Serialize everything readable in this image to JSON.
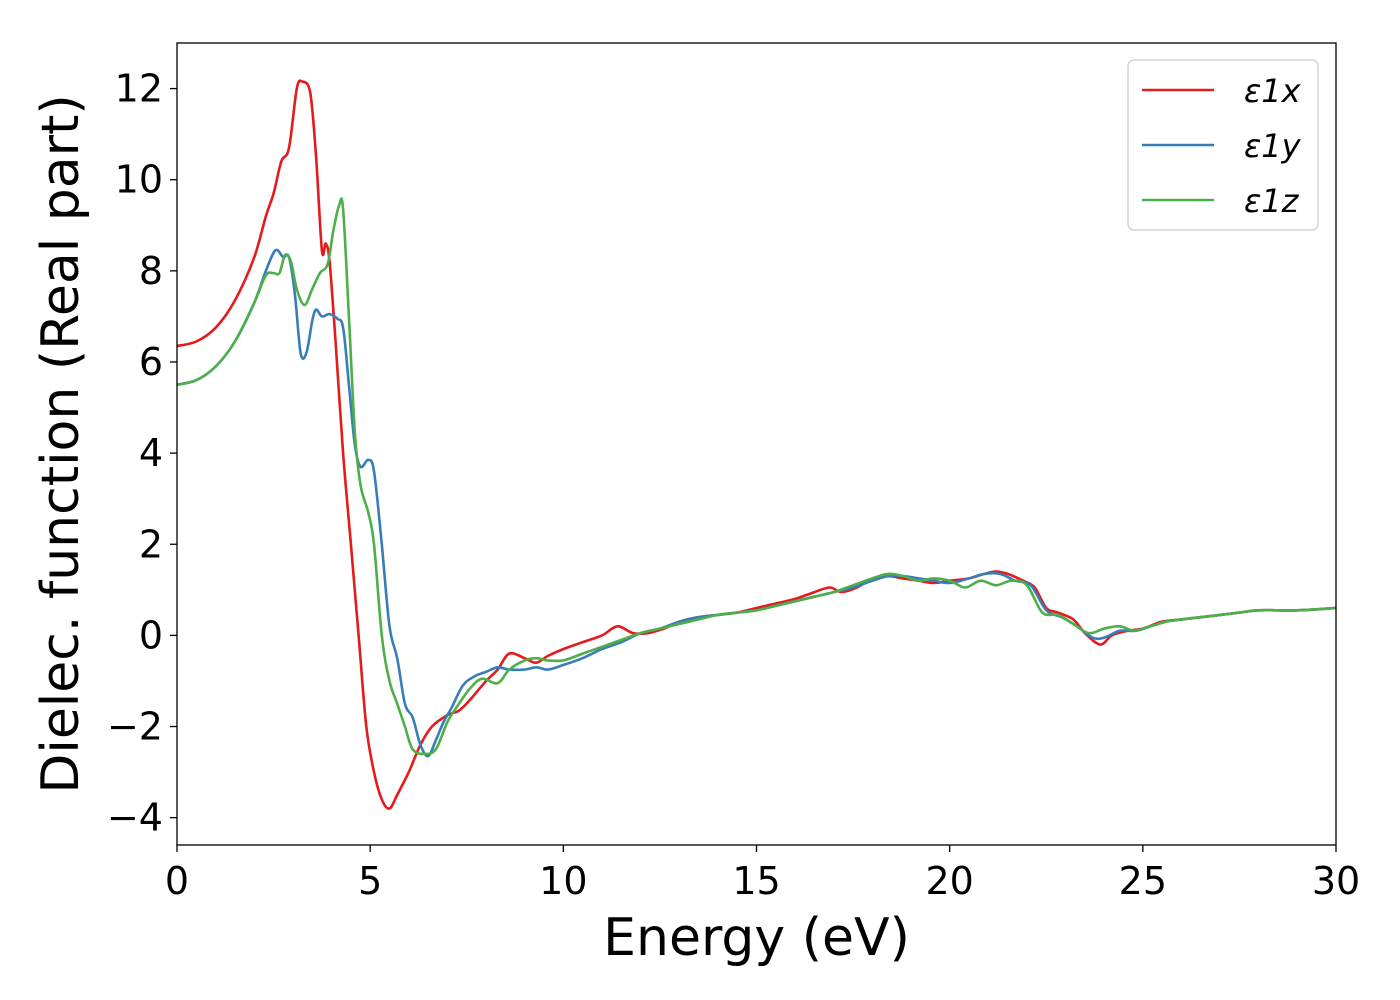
{
  "chart_data": {
    "type": "line",
    "xlabel": "Energy (eV)",
    "ylabel": "Dielec. function (Real part)",
    "xlim": [
      0,
      30
    ],
    "ylim": [
      -4.6,
      13.0
    ],
    "xticks": [
      0,
      5,
      10,
      15,
      20,
      25,
      30
    ],
    "xtick_labels": [
      "0",
      "5",
      "10",
      "15",
      "20",
      "25",
      "30"
    ],
    "yticks": [
      -4,
      -2,
      0,
      2,
      4,
      6,
      8,
      10,
      12
    ],
    "ytick_labels": [
      "−4",
      "−2",
      "0",
      "2",
      "4",
      "6",
      "8",
      "10",
      "12"
    ],
    "grid": false,
    "legend_position": "top-right",
    "series": [
      {
        "name": "ε1x",
        "color": "#e41a1c",
        "points": [
          [
            0,
            6.35
          ],
          [
            0.5,
            6.45
          ],
          [
            1.0,
            6.75
          ],
          [
            1.5,
            7.35
          ],
          [
            2.0,
            8.3
          ],
          [
            2.3,
            9.2
          ],
          [
            2.5,
            9.7
          ],
          [
            2.7,
            10.4
          ],
          [
            2.9,
            10.7
          ],
          [
            3.1,
            12.0
          ],
          [
            3.25,
            12.15
          ],
          [
            3.45,
            11.9
          ],
          [
            3.6,
            10.5
          ],
          [
            3.75,
            8.45
          ],
          [
            3.85,
            8.6
          ],
          [
            3.95,
            8.2
          ],
          [
            4.1,
            6.5
          ],
          [
            4.3,
            4.0
          ],
          [
            4.5,
            2.0
          ],
          [
            4.7,
            0.0
          ],
          [
            4.9,
            -2.0
          ],
          [
            5.1,
            -3.0
          ],
          [
            5.3,
            -3.6
          ],
          [
            5.5,
            -3.8
          ],
          [
            5.7,
            -3.5
          ],
          [
            6.0,
            -3.0
          ],
          [
            6.3,
            -2.4
          ],
          [
            6.6,
            -2.0
          ],
          [
            7.0,
            -1.75
          ],
          [
            7.3,
            -1.65
          ],
          [
            7.6,
            -1.4
          ],
          [
            8.0,
            -1.0
          ],
          [
            8.3,
            -0.75
          ],
          [
            8.6,
            -0.4
          ],
          [
            9.0,
            -0.5
          ],
          [
            9.3,
            -0.6
          ],
          [
            9.6,
            -0.45
          ],
          [
            10.0,
            -0.3
          ],
          [
            10.5,
            -0.15
          ],
          [
            11.0,
            0.0
          ],
          [
            11.4,
            0.2
          ],
          [
            11.8,
            0.05
          ],
          [
            12.2,
            0.05
          ],
          [
            12.6,
            0.15
          ],
          [
            13.0,
            0.3
          ],
          [
            13.5,
            0.4
          ],
          [
            14.0,
            0.45
          ],
          [
            14.5,
            0.5
          ],
          [
            15.0,
            0.6
          ],
          [
            15.5,
            0.7
          ],
          [
            16.0,
            0.8
          ],
          [
            16.5,
            0.95
          ],
          [
            16.9,
            1.05
          ],
          [
            17.2,
            0.95
          ],
          [
            17.6,
            1.05
          ],
          [
            18.0,
            1.25
          ],
          [
            18.4,
            1.3
          ],
          [
            18.8,
            1.25
          ],
          [
            19.2,
            1.2
          ],
          [
            19.6,
            1.15
          ],
          [
            20.0,
            1.2
          ],
          [
            20.5,
            1.25
          ],
          [
            20.9,
            1.35
          ],
          [
            21.2,
            1.4
          ],
          [
            21.5,
            1.35
          ],
          [
            21.9,
            1.2
          ],
          [
            22.2,
            1.05
          ],
          [
            22.5,
            0.6
          ],
          [
            22.8,
            0.5
          ],
          [
            23.2,
            0.35
          ],
          [
            23.5,
            0.05
          ],
          [
            23.9,
            -0.2
          ],
          [
            24.2,
            0.0
          ],
          [
            24.6,
            0.1
          ],
          [
            25.0,
            0.15
          ],
          [
            25.5,
            0.3
          ],
          [
            26.0,
            0.35
          ],
          [
            26.5,
            0.4
          ],
          [
            27.0,
            0.45
          ],
          [
            27.5,
            0.5
          ],
          [
            28.0,
            0.55
          ],
          [
            29.0,
            0.55
          ],
          [
            30.0,
            0.6
          ]
        ]
      },
      {
        "name": "ε1y",
        "color": "#377eb8",
        "points": [
          [
            0,
            5.5
          ],
          [
            0.5,
            5.6
          ],
          [
            1.0,
            5.9
          ],
          [
            1.5,
            6.45
          ],
          [
            2.0,
            7.3
          ],
          [
            2.3,
            8.0
          ],
          [
            2.55,
            8.45
          ],
          [
            2.75,
            8.3
          ],
          [
            2.9,
            8.3
          ],
          [
            3.05,
            7.5
          ],
          [
            3.2,
            6.2
          ],
          [
            3.35,
            6.2
          ],
          [
            3.5,
            6.9
          ],
          [
            3.6,
            7.15
          ],
          [
            3.75,
            7.0
          ],
          [
            3.95,
            7.05
          ],
          [
            4.15,
            6.95
          ],
          [
            4.3,
            6.75
          ],
          [
            4.45,
            5.5
          ],
          [
            4.6,
            4.2
          ],
          [
            4.75,
            3.7
          ],
          [
            4.95,
            3.85
          ],
          [
            5.1,
            3.6
          ],
          [
            5.3,
            2.0
          ],
          [
            5.5,
            0.2
          ],
          [
            5.7,
            -0.5
          ],
          [
            5.9,
            -1.5
          ],
          [
            6.1,
            -1.8
          ],
          [
            6.3,
            -2.4
          ],
          [
            6.5,
            -2.65
          ],
          [
            6.7,
            -2.3
          ],
          [
            6.9,
            -1.9
          ],
          [
            7.1,
            -1.6
          ],
          [
            7.4,
            -1.1
          ],
          [
            7.7,
            -0.9
          ],
          [
            8.0,
            -0.8
          ],
          [
            8.3,
            -0.7
          ],
          [
            8.6,
            -0.75
          ],
          [
            9.0,
            -0.75
          ],
          [
            9.3,
            -0.7
          ],
          [
            9.6,
            -0.75
          ],
          [
            10.0,
            -0.65
          ],
          [
            10.5,
            -0.5
          ],
          [
            11.0,
            -0.3
          ],
          [
            11.5,
            -0.15
          ],
          [
            12.0,
            0.05
          ],
          [
            12.5,
            0.15
          ],
          [
            13.0,
            0.3
          ],
          [
            13.5,
            0.4
          ],
          [
            14.0,
            0.45
          ],
          [
            14.5,
            0.5
          ],
          [
            15.0,
            0.55
          ],
          [
            15.5,
            0.65
          ],
          [
            16.0,
            0.75
          ],
          [
            16.5,
            0.85
          ],
          [
            17.0,
            0.95
          ],
          [
            17.5,
            1.05
          ],
          [
            18.0,
            1.2
          ],
          [
            18.4,
            1.3
          ],
          [
            18.8,
            1.3
          ],
          [
            19.2,
            1.25
          ],
          [
            19.6,
            1.2
          ],
          [
            20.0,
            1.15
          ],
          [
            20.5,
            1.25
          ],
          [
            20.9,
            1.35
          ],
          [
            21.3,
            1.35
          ],
          [
            21.7,
            1.2
          ],
          [
            22.1,
            1.1
          ],
          [
            22.5,
            0.55
          ],
          [
            22.9,
            0.4
          ],
          [
            23.3,
            0.2
          ],
          [
            23.7,
            -0.05
          ],
          [
            24.0,
            -0.05
          ],
          [
            24.4,
            0.1
          ],
          [
            24.8,
            0.1
          ],
          [
            25.2,
            0.2
          ],
          [
            25.6,
            0.3
          ],
          [
            26.0,
            0.35
          ],
          [
            26.5,
            0.4
          ],
          [
            27.0,
            0.45
          ],
          [
            27.5,
            0.5
          ],
          [
            28.0,
            0.55
          ],
          [
            29.0,
            0.55
          ],
          [
            30.0,
            0.6
          ]
        ]
      },
      {
        "name": "ε1z",
        "color": "#4daf4a",
        "points": [
          [
            0,
            5.5
          ],
          [
            0.5,
            5.6
          ],
          [
            1.0,
            5.9
          ],
          [
            1.5,
            6.45
          ],
          [
            2.0,
            7.3
          ],
          [
            2.3,
            7.9
          ],
          [
            2.5,
            7.95
          ],
          [
            2.65,
            7.95
          ],
          [
            2.8,
            8.35
          ],
          [
            2.95,
            8.2
          ],
          [
            3.1,
            7.6
          ],
          [
            3.3,
            7.25
          ],
          [
            3.5,
            7.6
          ],
          [
            3.7,
            7.95
          ],
          [
            3.9,
            8.15
          ],
          [
            4.05,
            8.9
          ],
          [
            4.2,
            9.45
          ],
          [
            4.3,
            9.35
          ],
          [
            4.45,
            7.0
          ],
          [
            4.6,
            4.5
          ],
          [
            4.75,
            3.3
          ],
          [
            4.95,
            2.7
          ],
          [
            5.1,
            2.0
          ],
          [
            5.3,
            0.0
          ],
          [
            5.5,
            -1.0
          ],
          [
            5.7,
            -1.5
          ],
          [
            5.9,
            -2.0
          ],
          [
            6.1,
            -2.5
          ],
          [
            6.4,
            -2.6
          ],
          [
            6.7,
            -2.5
          ],
          [
            7.0,
            -1.9
          ],
          [
            7.3,
            -1.5
          ],
          [
            7.6,
            -1.15
          ],
          [
            7.9,
            -0.95
          ],
          [
            8.3,
            -1.05
          ],
          [
            8.6,
            -0.75
          ],
          [
            9.0,
            -0.55
          ],
          [
            9.3,
            -0.5
          ],
          [
            9.6,
            -0.55
          ],
          [
            10.0,
            -0.55
          ],
          [
            10.5,
            -0.4
          ],
          [
            11.0,
            -0.25
          ],
          [
            11.5,
            -0.1
          ],
          [
            12.0,
            0.05
          ],
          [
            12.5,
            0.15
          ],
          [
            13.0,
            0.25
          ],
          [
            13.5,
            0.35
          ],
          [
            14.0,
            0.45
          ],
          [
            14.5,
            0.5
          ],
          [
            15.0,
            0.55
          ],
          [
            15.5,
            0.65
          ],
          [
            16.0,
            0.75
          ],
          [
            16.5,
            0.85
          ],
          [
            17.0,
            0.95
          ],
          [
            17.5,
            1.1
          ],
          [
            18.0,
            1.25
          ],
          [
            18.4,
            1.35
          ],
          [
            18.8,
            1.3
          ],
          [
            19.2,
            1.2
          ],
          [
            19.6,
            1.25
          ],
          [
            20.0,
            1.2
          ],
          [
            20.4,
            1.05
          ],
          [
            20.8,
            1.2
          ],
          [
            21.2,
            1.1
          ],
          [
            21.6,
            1.2
          ],
          [
            22.0,
            1.1
          ],
          [
            22.4,
            0.5
          ],
          [
            22.8,
            0.45
          ],
          [
            23.2,
            0.25
          ],
          [
            23.6,
            0.05
          ],
          [
            24.0,
            0.15
          ],
          [
            24.4,
            0.2
          ],
          [
            24.8,
            0.1
          ],
          [
            25.2,
            0.2
          ],
          [
            25.6,
            0.3
          ],
          [
            26.0,
            0.35
          ],
          [
            26.5,
            0.4
          ],
          [
            27.0,
            0.45
          ],
          [
            27.5,
            0.5
          ],
          [
            28.0,
            0.55
          ],
          [
            29.0,
            0.55
          ],
          [
            30.0,
            0.6
          ]
        ]
      }
    ]
  }
}
